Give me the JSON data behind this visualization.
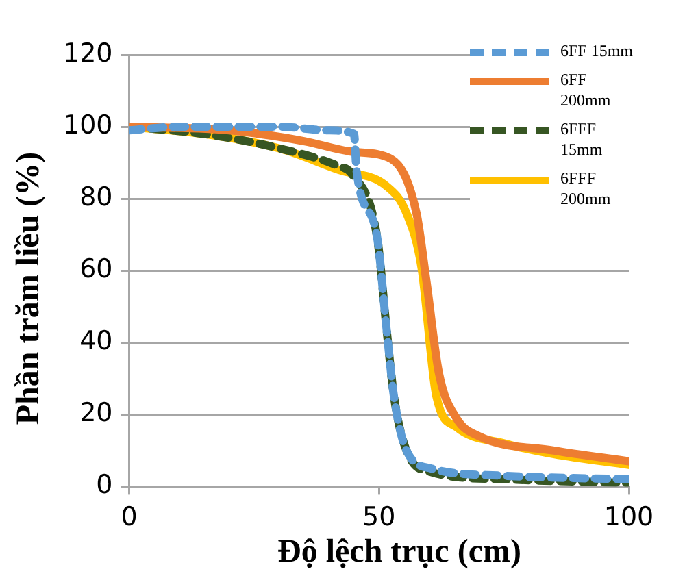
{
  "chart_data": {
    "type": "line",
    "xlabel": "Độ lệch trục (cm)",
    "ylabel": "Phần trăm liều (%)",
    "xlim": [
      0,
      100
    ],
    "xticks": [
      0,
      50,
      100
    ],
    "ylim": [
      0,
      120
    ],
    "yticks": [
      0,
      20,
      40,
      60,
      80,
      100,
      120
    ],
    "grid": "y",
    "legend": "top right",
    "marker": "none",
    "series": [
      {
        "name": "6FF 15mm",
        "color": "#5b9bd5",
        "line_style": "dashed",
        "x": [
          0,
          10,
          20,
          30,
          40,
          45,
          45.5,
          49.6,
          51.5,
          53,
          55.5,
          60.5,
          75,
          100
        ],
        "values": [
          99,
          100,
          100,
          100,
          99,
          98,
          88,
          69.5,
          44,
          25,
          10,
          5,
          3,
          2
        ]
      },
      {
        "name": "6FF 200mm",
        "color": "#ed7d31",
        "line_style": "solid",
        "x": [
          0,
          20,
          35,
          45,
          52.5,
          57.5,
          59.5,
          62,
          65.5,
          70,
          85,
          100
        ],
        "values": [
          100,
          99,
          96,
          93,
          91,
          76,
          57,
          31.5,
          19,
          14,
          10,
          7
        ]
      },
      {
        "name": "6FFF 15mm",
        "color": "#375623",
        "line_style": "dashed",
        "x": [
          0,
          15,
          30,
          42,
          44.5,
          49.6,
          51.5,
          53,
          55.5,
          60.5,
          75,
          100
        ],
        "values": [
          100,
          98,
          94,
          89,
          87,
          69.5,
          44,
          25,
          10,
          4,
          2,
          1
        ]
      },
      {
        "name": "6FFF 200mm",
        "color": "#ffc000",
        "line_style": "solid",
        "x": [
          0,
          15,
          30,
          42,
          51.5,
          55.5,
          58.5,
          61.5,
          65.5,
          75,
          85,
          100
        ],
        "values": [
          100,
          98,
          94,
          88,
          83.5,
          76,
          61,
          25,
          16.5,
          12,
          9,
          6
        ]
      }
    ]
  }
}
